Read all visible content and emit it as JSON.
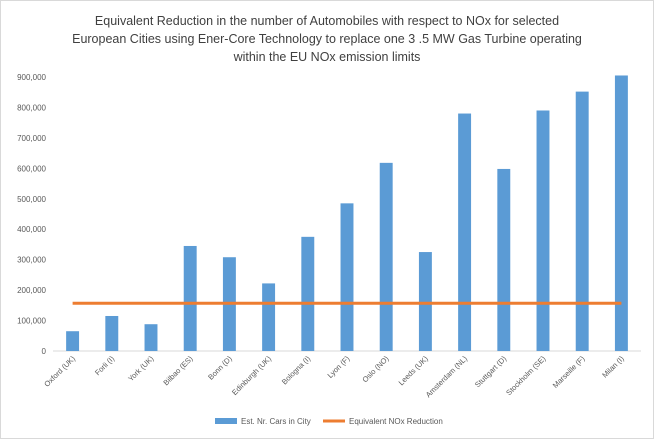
{
  "chart_data": {
    "type": "bar",
    "title_lines": [
      "Equivalent Reduction in the number  of Automobiles  with respect to NOx for selected",
      "European Cities using Ener-Core Technology to replace one 3 .5 MW Gas Turbine operating",
      "within the EU NOx emission limits"
    ],
    "xlabel": "",
    "ylabel": "",
    "categories": [
      "Oxford (UK)",
      "Forli (I)",
      "York (UK)",
      "Bilbao (ES)",
      "Bonn (D)",
      "Edinburgh (UK)",
      "Bologna (I)",
      "Lyon (F)",
      "Oslo (NO)",
      "Leeds (UK)",
      "Amsterdam (NL)",
      "Stuttgart (D)",
      "Stockholm (SE)",
      "Marseille (F)",
      "Milan (I)"
    ],
    "series": [
      {
        "name": "Est. Nr. Cars in City",
        "kind": "bar",
        "color": "#5b9bd5",
        "values": [
          65000,
          115000,
          88000,
          345000,
          308000,
          222000,
          375000,
          485000,
          618000,
          325000,
          780000,
          598000,
          790000,
          852000,
          905000
        ]
      },
      {
        "name": "Equivalent NOx Reduction",
        "kind": "line",
        "color": "#ed7d31",
        "value": 157000
      }
    ],
    "yticks": [
      "0",
      "100,000",
      "200,000",
      "300,000",
      "400,000",
      "500,000",
      "600,000",
      "700,000",
      "800,000",
      "900,000"
    ],
    "ylim": [
      0,
      900000
    ],
    "grid": false,
    "legend_position": "bottom"
  }
}
